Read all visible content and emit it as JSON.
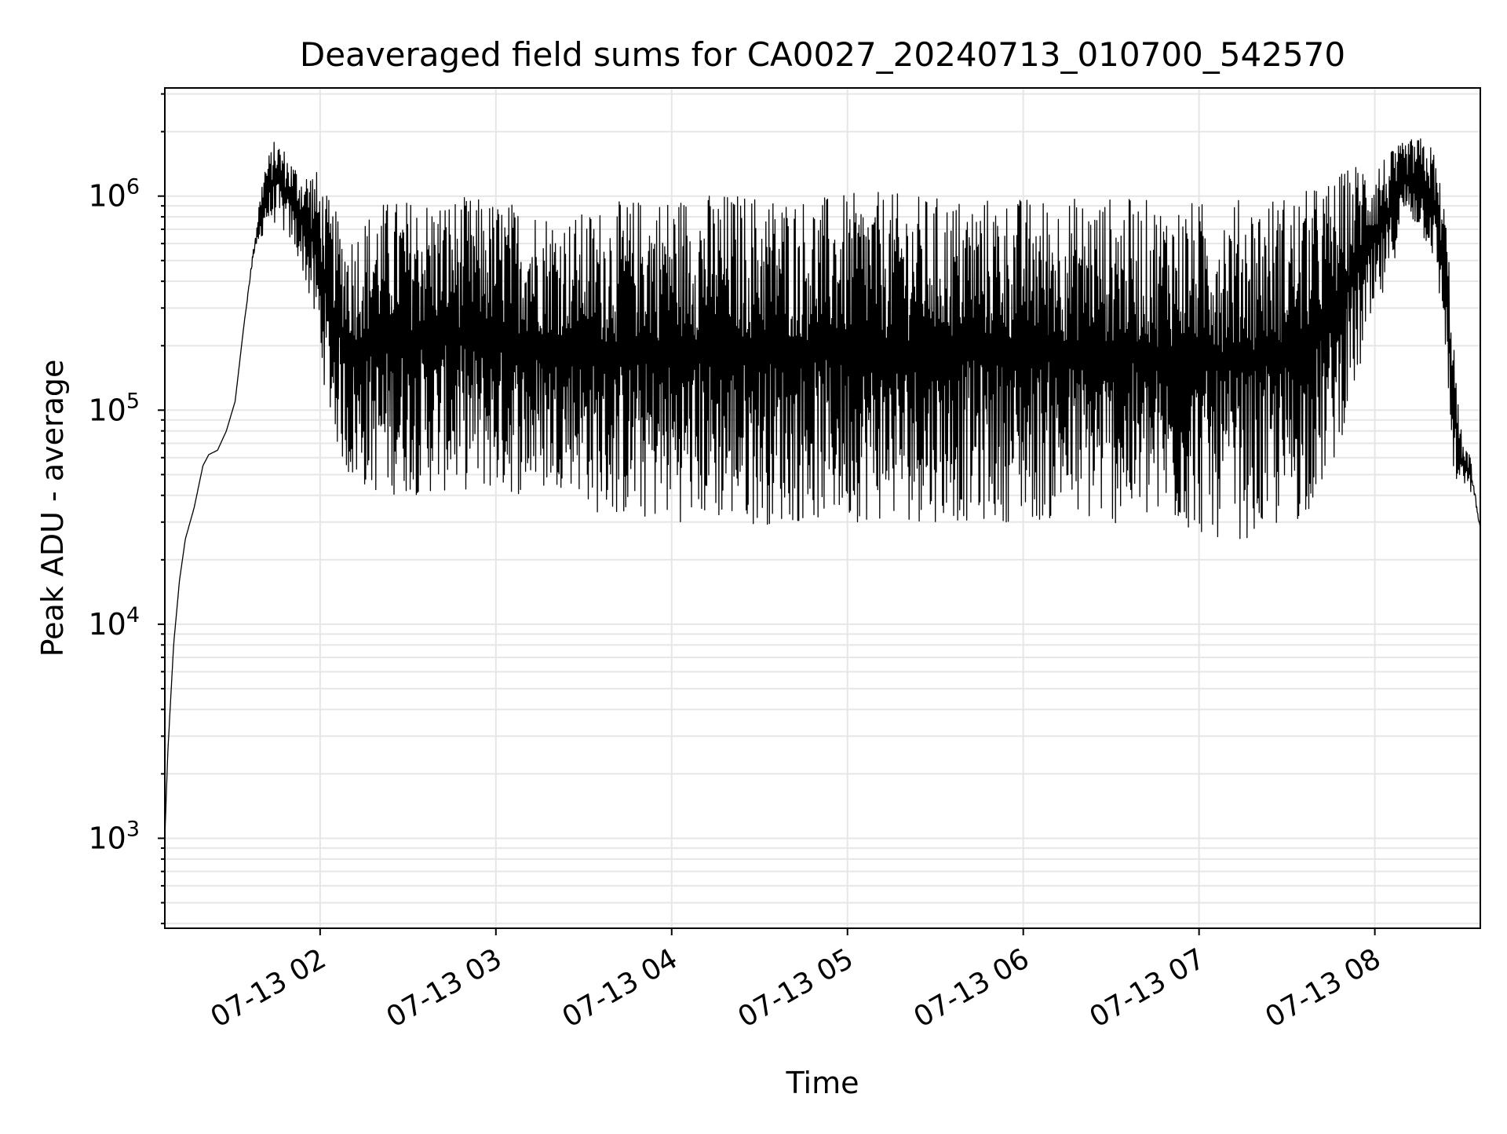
{
  "chart_data": {
    "type": "line",
    "title": "Deaveraged field sums for CA0027_20240713_010700_542570",
    "xlabel": "Time",
    "ylabel": "Peak ADU - average",
    "x_axis": {
      "kind": "time",
      "range": [
        "2024-07-13T01:07:00",
        "2024-07-13T08:36:00"
      ],
      "tick_labels": [
        "07-13 02",
        "07-13 03",
        "07-13 04",
        "07-13 05",
        "07-13 06",
        "07-13 07",
        "07-13 08"
      ],
      "tick_values": [
        "2024-07-13T02:00:00",
        "2024-07-13T03:00:00",
        "2024-07-13T04:00:00",
        "2024-07-13T05:00:00",
        "2024-07-13T06:00:00",
        "2024-07-13T07:00:00",
        "2024-07-13T08:00:00"
      ],
      "tick_label_rotation_deg": 30
    },
    "y_axis": {
      "scale": "log",
      "range": [
        380,
        3200000
      ],
      "tick_labels": [
        {
          "base": "10",
          "exp": "3",
          "value": 1000
        },
        {
          "base": "10",
          "exp": "4",
          "value": 10000
        },
        {
          "base": "10",
          "exp": "5",
          "value": 100000
        },
        {
          "base": "10",
          "exp": "6",
          "value": 1000000
        }
      ]
    },
    "grid": true,
    "grid_color": "#e6e6e6",
    "line_color": "#000000",
    "series": [
      {
        "x": [
          "2024-07-13T01:07:00",
          "2024-07-13T01:08:00",
          "2024-07-13T01:10:00",
          "2024-07-13T01:12:00",
          "2024-07-13T01:14:00",
          "2024-07-13T01:17:00",
          "2024-07-13T01:20:00",
          "2024-07-13T01:22:00",
          "2024-07-13T01:25:00",
          "2024-07-13T01:28:00",
          "2024-07-13T01:31:00",
          "2024-07-13T01:34:00",
          "2024-07-13T01:37:00",
          "2024-07-13T01:41:00",
          "2024-07-13T01:45:00",
          "2024-07-13T01:50:00",
          "2024-07-13T01:54:00",
          "2024-07-13T01:58:00",
          "2024-07-13T02:04:00",
          "2024-07-13T02:10:00",
          "2024-07-13T02:20:00",
          "2024-07-13T02:35:00",
          "2024-07-13T02:50:00",
          "2024-07-13T03:05:00",
          "2024-07-13T03:15:00",
          "2024-07-13T03:25:00",
          "2024-07-13T03:35:00",
          "2024-07-13T03:50:00",
          "2024-07-13T04:10:00",
          "2024-07-13T04:30:00",
          "2024-07-13T04:50:00",
          "2024-07-13T05:10:00",
          "2024-07-13T05:30:00",
          "2024-07-13T05:50:00",
          "2024-07-13T06:10:00",
          "2024-07-13T06:30:00",
          "2024-07-13T06:50:00",
          "2024-07-13T07:05:00",
          "2024-07-13T07:20:00",
          "2024-07-13T07:35:00",
          "2024-07-13T07:45:00",
          "2024-07-13T07:55:00",
          "2024-07-13T08:00:00",
          "2024-07-13T08:05:00",
          "2024-07-13T08:10:00",
          "2024-07-13T08:15:00",
          "2024-07-13T08:20:00",
          "2024-07-13T08:24:00",
          "2024-07-13T08:26:00",
          "2024-07-13T08:28:00",
          "2024-07-13T08:30:00",
          "2024-07-13T08:33:00",
          "2024-07-13T08:36:00"
        ],
        "upper": [
          1000,
          2500,
          8000,
          16000,
          25000,
          35000,
          55000,
          62000,
          65000,
          80000,
          110000,
          250000,
          600000,
          1400000,
          1900000,
          1500000,
          1300000,
          1400000,
          900000,
          700000,
          950000,
          1000000,
          1000000,
          950000,
          900000,
          800000,
          900000,
          1000000,
          1050000,
          1050000,
          1000000,
          1050000,
          1000000,
          1000000,
          1000000,
          1000000,
          950000,
          950000,
          1000000,
          1050000,
          1200000,
          1500000,
          1500000,
          1600000,
          1800000,
          1900000,
          1700000,
          900000,
          400000,
          120000,
          70000,
          60000,
          30000
        ],
        "lower": [
          1000,
          2500,
          8000,
          16000,
          25000,
          35000,
          55000,
          62000,
          65000,
          80000,
          110000,
          250000,
          450000,
          700000,
          750000,
          600000,
          450000,
          250000,
          80000,
          45000,
          40000,
          40000,
          42000,
          40000,
          40000,
          45000,
          32000,
          30000,
          30000,
          29000,
          30000,
          30000,
          30000,
          30000,
          30000,
          29000,
          28000,
          25000,
          25000,
          30000,
          50000,
          150000,
          250000,
          400000,
          800000,
          700000,
          500000,
          200000,
          60000,
          40000,
          45000,
          40000,
          26000
        ]
      }
    ]
  }
}
